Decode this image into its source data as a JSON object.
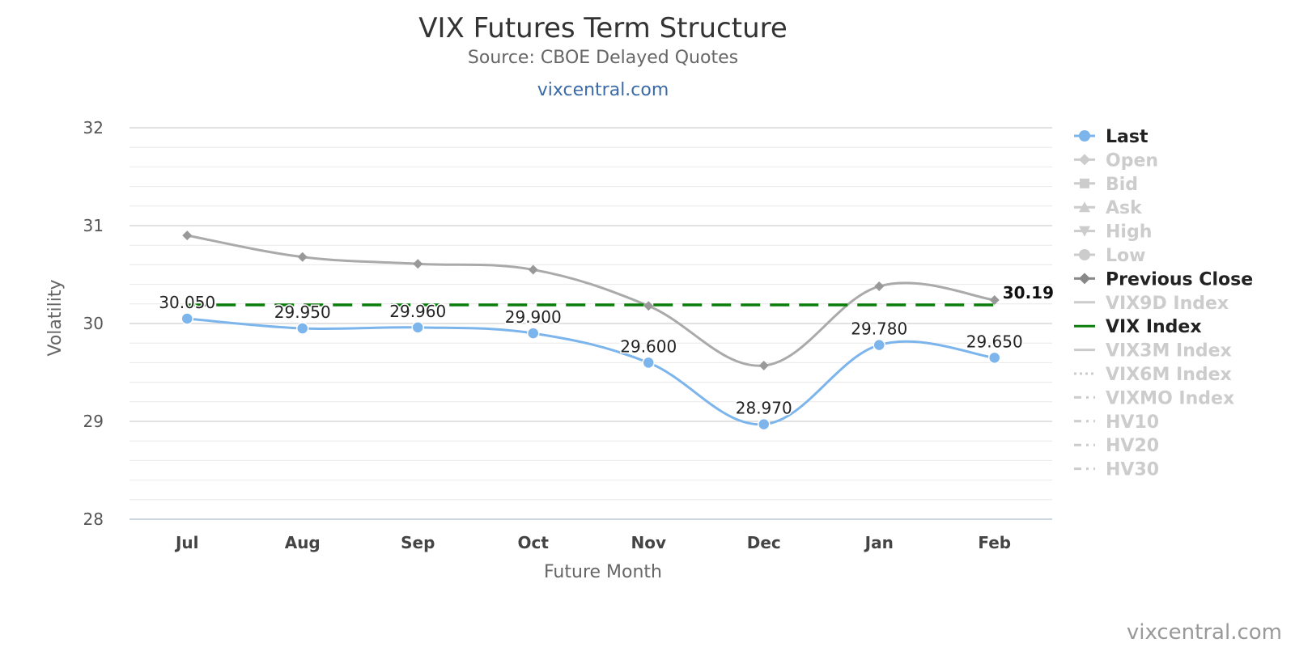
{
  "chart_data": {
    "type": "line",
    "title": "VIX Futures Term Structure",
    "subtitle": "Source: CBOE Delayed Quotes",
    "subtitle_link": "vixcentral.com",
    "xlabel": "Future Month",
    "ylabel": "Volatility",
    "categories": [
      "Jul",
      "Aug",
      "Sep",
      "Oct",
      "Nov",
      "Dec",
      "Jan",
      "Feb"
    ],
    "ylim": [
      28,
      32
    ],
    "yticks": [
      "28",
      "29",
      "30",
      "31",
      "32"
    ],
    "grid": true,
    "legend_placement": "right",
    "series": [
      {
        "name": "Last",
        "color": "#7cb5ec",
        "marker": "circle",
        "values": [
          30.05,
          29.95,
          29.96,
          29.9,
          29.6,
          28.97,
          29.78,
          29.65
        ],
        "labels": [
          "30.050",
          "29.950",
          "29.960",
          "29.900",
          "29.600",
          "28.970",
          "29.780",
          "29.650"
        ]
      },
      {
        "name": "Previous Close",
        "color": "#aaaaaa",
        "marker": "diamond",
        "values": [
          30.9,
          30.68,
          30.61,
          30.55,
          30.18,
          29.57,
          30.38,
          30.24
        ]
      },
      {
        "name": "VIX Index",
        "color": "#0a7d0a",
        "style": "dashed",
        "values": [
          30.19,
          30.19,
          30.19,
          30.19,
          30.19,
          30.19,
          30.19,
          30.19
        ],
        "end_label": "30.19"
      }
    ],
    "legend": [
      {
        "name": "Last",
        "active": true,
        "symbol": "circle",
        "color": "#7cb5ec"
      },
      {
        "name": "Open",
        "active": false,
        "symbol": "diamond",
        "color": "#cccccc"
      },
      {
        "name": "Bid",
        "active": false,
        "symbol": "square",
        "color": "#cccccc"
      },
      {
        "name": "Ask",
        "active": false,
        "symbol": "triangle",
        "color": "#cccccc"
      },
      {
        "name": "High",
        "active": false,
        "symbol": "triangle-down",
        "color": "#cccccc"
      },
      {
        "name": "Low",
        "active": false,
        "symbol": "circle",
        "color": "#cccccc"
      },
      {
        "name": "Previous Close",
        "active": true,
        "symbol": "diamond",
        "color": "#888888"
      },
      {
        "name": "VIX9D Index",
        "active": false,
        "symbol": "line",
        "color": "#cccccc"
      },
      {
        "name": "VIX Index",
        "active": true,
        "symbol": "line",
        "color": "#0a7d0a"
      },
      {
        "name": "VIX3M Index",
        "active": false,
        "symbol": "line",
        "color": "#cccccc"
      },
      {
        "name": "VIX6M Index",
        "active": false,
        "symbol": "dotted",
        "color": "#cccccc"
      },
      {
        "name": "VIXMO Index",
        "active": false,
        "symbol": "dashdot",
        "color": "#cccccc"
      },
      {
        "name": "HV10",
        "active": false,
        "symbol": "dashdot",
        "color": "#cccccc"
      },
      {
        "name": "HV20",
        "active": false,
        "symbol": "dashdot",
        "color": "#cccccc"
      },
      {
        "name": "HV30",
        "active": false,
        "symbol": "dashdot",
        "color": "#cccccc"
      }
    ]
  },
  "credit": "vixcentral.com"
}
